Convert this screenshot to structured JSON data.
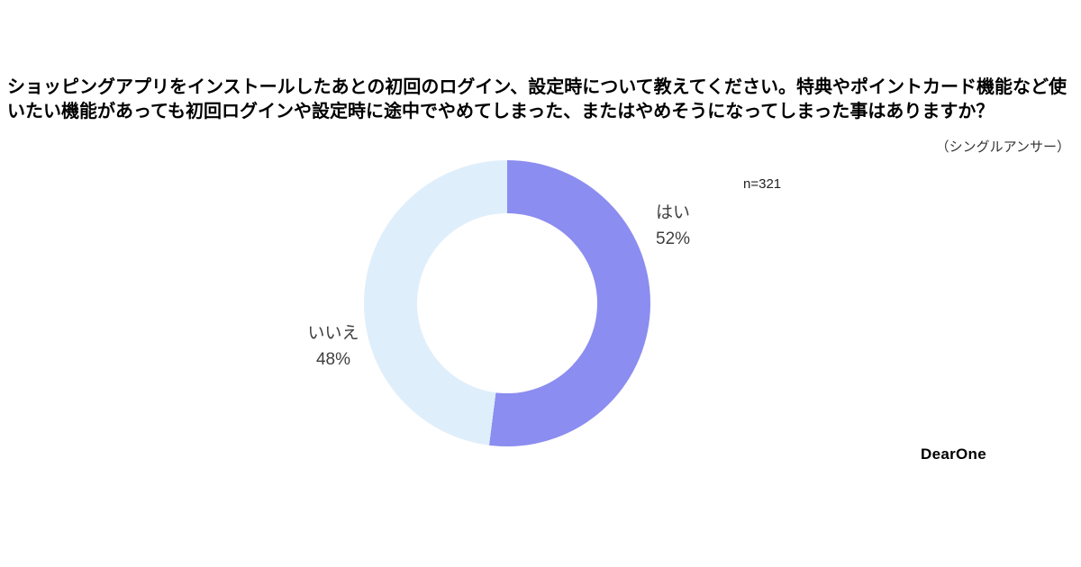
{
  "header": {
    "question": "ショッピングアプリをインストールしたあとの初回のログイン、設定時について教えてください。特典やポイントカード機能など使いたい機能があっても初回ログインや設定時に途中でやめてしまった、またはやめそうになってしまった事はありますか？",
    "answer_type": "（シングルアンサー）"
  },
  "chart_data": {
    "type": "pie",
    "donut": true,
    "title": "ショッピングアプリをインストールしたあとの初回のログイン、設定時について教えてください。特典やポイントカード機能など使いたい機能があっても初回ログインや設定時に途中でやめてしまった、またはやめそうになってしまった事はありますか？",
    "subtitle": "（シングルアンサー）",
    "sample_size": "n=321",
    "categories": [
      "はい",
      "いいえ"
    ],
    "values": [
      52,
      48
    ],
    "start_angle_deg": 0,
    "direction": "clockwise",
    "legend_position": "none",
    "segments": [
      {
        "category": "はい",
        "value": 52,
        "percent_label": "52%",
        "color": "#8c8df0"
      },
      {
        "category": "いいえ",
        "value": 48,
        "percent_label": "48%",
        "color": "#dfeefb"
      }
    ]
  },
  "footer": {
    "logo_dear": "Dear",
    "logo_one": "One"
  }
}
